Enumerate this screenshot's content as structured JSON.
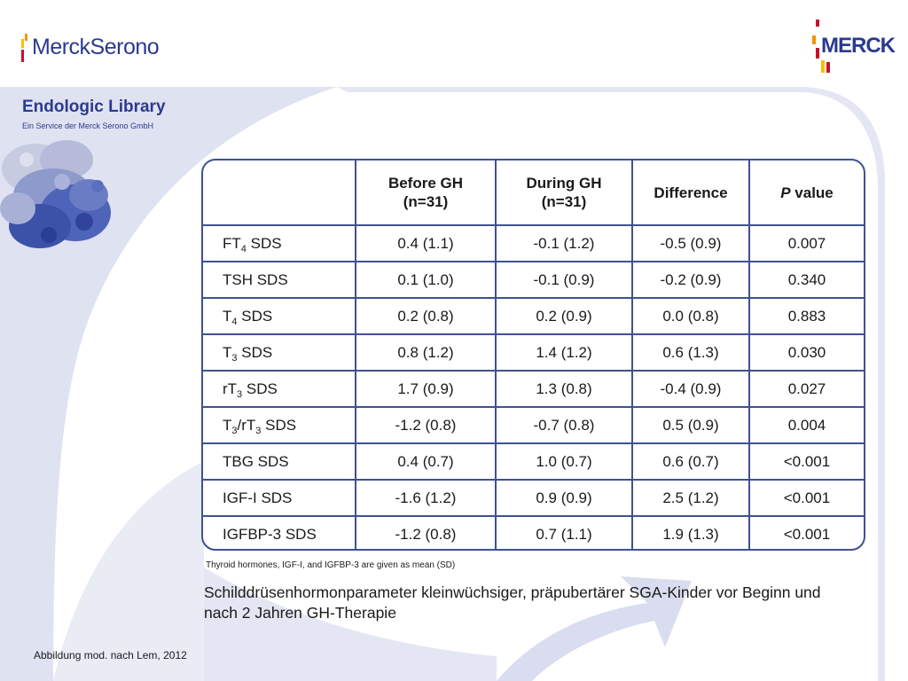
{
  "brand": {
    "left_logo_text": "MerckSerono",
    "right_logo_text": "MERCK",
    "colors": {
      "primary": "#2b3a8f",
      "table_border": "#3d5291",
      "accent_red": "#c8102e",
      "accent_orange": "#f29400",
      "accent_yellow": "#f2c200"
    }
  },
  "sidebar": {
    "title": "Endologic Library",
    "subtitle": "Ein Service der Merck Serono GmbH"
  },
  "table": {
    "headers": [
      {
        "line1": "",
        "line2": ""
      },
      {
        "line1": "Before GH",
        "line2": "(n=31)"
      },
      {
        "line1": "During GH",
        "line2": "(n=31)"
      },
      {
        "line1": "Difference",
        "line2": ""
      },
      {
        "line1_pre": "P",
        "line1_post": " value"
      }
    ],
    "rows": [
      {
        "param": {
          "a": "FT",
          "s1": "4",
          "b": " SDS",
          "s2": "",
          "c": ""
        },
        "before": "0.4 (1.1)",
        "during": "-0.1 (1.2)",
        "difference": "-0.5 (0.9)",
        "p": "0.007"
      },
      {
        "param": {
          "a": "TSH SDS",
          "s1": "",
          "b": "",
          "s2": "",
          "c": ""
        },
        "before": "0.1 (1.0)",
        "during": "-0.1 (0.9)",
        "difference": "-0.2 (0.9)",
        "p": "0.340"
      },
      {
        "param": {
          "a": "T",
          "s1": "4",
          "b": " SDS",
          "s2": "",
          "c": ""
        },
        "before": "0.2 (0.8)",
        "during": "0.2 (0.9)",
        "difference": "0.0 (0.8)",
        "p": "0.883"
      },
      {
        "param": {
          "a": "T",
          "s1": "3",
          "b": " SDS",
          "s2": "",
          "c": ""
        },
        "before": "0.8 (1.2)",
        "during": "1.4 (1.2)",
        "difference": "0.6 (1.3)",
        "p": "0.030"
      },
      {
        "param": {
          "a": "rT",
          "s1": "3",
          "b": " SDS",
          "s2": "",
          "c": ""
        },
        "before": "1.7 (0.9)",
        "during": "1.3 (0.8)",
        "difference": "-0.4 (0.9)",
        "p": "0.027"
      },
      {
        "param": {
          "a": "T",
          "s1": "3",
          "b": "/rT",
          "s2": "3",
          "c": " SDS"
        },
        "before": "-1.2 (0.8)",
        "during": "-0.7 (0.8)",
        "difference": "0.5 (0.9)",
        "p": "0.004"
      },
      {
        "param": {
          "a": "TBG SDS",
          "s1": "",
          "b": "",
          "s2": "",
          "c": ""
        },
        "before": "0.4 (0.7)",
        "during": "1.0 (0.7)",
        "difference": "0.6 (0.7)",
        "p": "<0.001"
      },
      {
        "param": {
          "a": "IGF-I SDS",
          "s1": "",
          "b": "",
          "s2": "",
          "c": ""
        },
        "before": "-1.6 (1.2)",
        "during": "0.9 (0.9)",
        "difference": "2.5 (1.2)",
        "p": "<0.001"
      },
      {
        "param": {
          "a": "IGFBP-3 SDS",
          "s1": "",
          "b": "",
          "s2": "",
          "c": ""
        },
        "before": "-1.2 (0.8)",
        "during": "0.7 (1.1)",
        "difference": "1.9 (1.3)",
        "p": "<0.001"
      }
    ]
  },
  "footnote": "Thyroid hormones, IGF-I, and IGFBP-3 are given as mean (SD)",
  "caption": "Schilddrüsenhormonparameter kleinwüchsiger, präpubertärer SGA-Kinder vor Beginn und nach 2 Jahren GH-Therapie",
  "source": "Abbildung mod. nach Lem, 2012"
}
